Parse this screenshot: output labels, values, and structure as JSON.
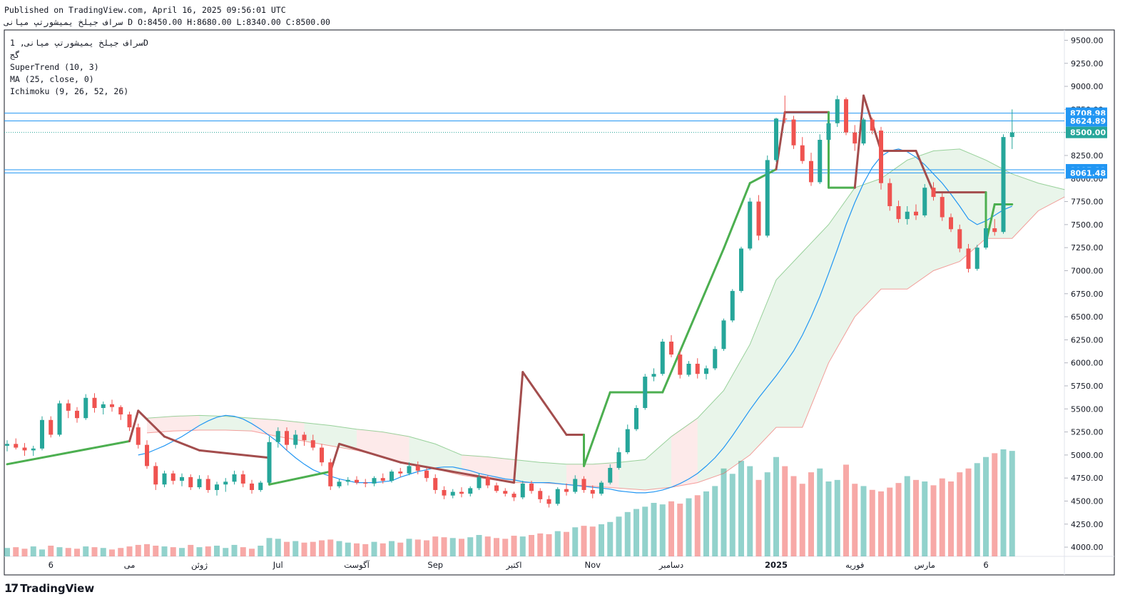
{
  "header": {
    "published": "Published on TradingView.com, April 16, 2025 09:56:01 UTC",
    "symbol_line": "سراف جیلخ یمیشورتپ میانی D O:8450.00 H:8680.00 L:8340.00 C:8500.00"
  },
  "legend": {
    "symbol": "سراف جیلخ یمیشورتپ میانی, 1D",
    "exchange": "گج",
    "supertrend": "SuperTrend (10, 3)",
    "ma": "MA (25, close, 0)",
    "ichimoku": "Ichimoku (9, 26, 52, 26)"
  },
  "brand": {
    "logo": "17",
    "name": "TradingView"
  },
  "colors": {
    "up": "#26a69a",
    "down": "#ef5350",
    "supertrend_up": "#4caf50",
    "supertrend_down": "#a34d4d",
    "ma": "#2196f3",
    "cloud_bull": "#4caf50",
    "cloud_bear": "#ef5350",
    "hline": "#2196f3",
    "last_price": "#26a69a"
  },
  "chart_data": {
    "type": "candlestick",
    "timeframe": "1D",
    "ylim": [
      3900,
      9550
    ],
    "yticks": [
      4000,
      4250,
      4500,
      4750,
      5000,
      5250,
      5500,
      5750,
      6000,
      6250,
      6500,
      6750,
      7000,
      7250,
      7500,
      7750,
      8000,
      8250,
      8500,
      8750,
      9000,
      9250,
      9500
    ],
    "x_ticks": [
      {
        "label": "6",
        "bold": false,
        "i": 5
      },
      {
        "label": "می",
        "bold": false,
        "i": 14
      },
      {
        "label": "ژوئن",
        "bold": false,
        "i": 22
      },
      {
        "label": "Jul",
        "bold": false,
        "i": 31
      },
      {
        "label": "آگوست",
        "bold": false,
        "i": 40
      },
      {
        "label": "Sep",
        "bold": false,
        "i": 49
      },
      {
        "label": "اکتبر",
        "bold": false,
        "i": 58
      },
      {
        "label": "Nov",
        "bold": false,
        "i": 67
      },
      {
        "label": "دسامبر",
        "bold": false,
        "i": 76
      },
      {
        "label": "2025",
        "bold": true,
        "i": 88
      },
      {
        "label": "فوریه",
        "bold": false,
        "i": 97
      },
      {
        "label": "مارس",
        "bold": false,
        "i": 105
      },
      {
        "label": "6",
        "bold": false,
        "i": 112
      }
    ],
    "price_labels": [
      {
        "value": 8708.98,
        "label": "8708.98",
        "kind": "hline"
      },
      {
        "value": 8624.89,
        "label": "8624.89",
        "kind": "hline"
      },
      {
        "value": 8500.0,
        "label": "8500.00",
        "kind": "last"
      },
      {
        "value": 8095.12,
        "label": "8095.12",
        "kind": "hline"
      },
      {
        "value": 8061.48,
        "label": "8061.48",
        "kind": "hline"
      }
    ],
    "candles_ohlc": [
      [
        5100,
        5160,
        5040,
        5120
      ],
      [
        5120,
        5180,
        5060,
        5080
      ],
      [
        5080,
        5130,
        4990,
        5050
      ],
      [
        5050,
        5100,
        4990,
        5070
      ],
      [
        5070,
        5420,
        5050,
        5380
      ],
      [
        5380,
        5420,
        5190,
        5220
      ],
      [
        5220,
        5590,
        5200,
        5560
      ],
      [
        5560,
        5600,
        5400,
        5480
      ],
      [
        5480,
        5520,
        5350,
        5400
      ],
      [
        5400,
        5660,
        5380,
        5620
      ],
      [
        5620,
        5670,
        5460,
        5510
      ],
      [
        5510,
        5580,
        5440,
        5550
      ],
      [
        5550,
        5600,
        5470,
        5520
      ],
      [
        5520,
        5540,
        5380,
        5440
      ],
      [
        5440,
        5470,
        5260,
        5300
      ],
      [
        5300,
        5340,
        5070,
        5110
      ],
      [
        5110,
        5160,
        4850,
        4880
      ],
      [
        4880,
        4920,
        4620,
        4680
      ],
      [
        4680,
        4830,
        4650,
        4800
      ],
      [
        4800,
        4830,
        4680,
        4720
      ],
      [
        4720,
        4800,
        4660,
        4760
      ],
      [
        4760,
        4790,
        4620,
        4650
      ],
      [
        4650,
        4780,
        4630,
        4740
      ],
      [
        4740,
        4780,
        4590,
        4620
      ],
      [
        4620,
        4710,
        4560,
        4680
      ],
      [
        4680,
        4750,
        4600,
        4710
      ],
      [
        4710,
        4830,
        4680,
        4790
      ],
      [
        4790,
        4830,
        4650,
        4690
      ],
      [
        4690,
        4730,
        4580,
        4620
      ],
      [
        4620,
        4720,
        4600,
        4700
      ],
      [
        4700,
        5200,
        4680,
        5140
      ],
      [
        5140,
        5300,
        5080,
        5260
      ],
      [
        5260,
        5300,
        5050,
        5110
      ],
      [
        5110,
        5270,
        5070,
        5220
      ],
      [
        5220,
        5250,
        5100,
        5160
      ],
      [
        5160,
        5220,
        5050,
        5080
      ],
      [
        5080,
        5120,
        4880,
        4920
      ],
      [
        4920,
        4960,
        4620,
        4660
      ],
      [
        4660,
        4740,
        4640,
        4710
      ],
      [
        4710,
        4760,
        4670,
        4730
      ],
      [
        4730,
        4770,
        4680,
        4700
      ],
      [
        4700,
        4740,
        4650,
        4690
      ],
      [
        4690,
        4770,
        4660,
        4750
      ],
      [
        4750,
        4800,
        4690,
        4720
      ],
      [
        4720,
        4840,
        4700,
        4820
      ],
      [
        4820,
        4860,
        4760,
        4800
      ],
      [
        4800,
        4920,
        4780,
        4880
      ],
      [
        4880,
        4930,
        4790,
        4830
      ],
      [
        4830,
        4860,
        4710,
        4750
      ],
      [
        4750,
        4790,
        4580,
        4620
      ],
      [
        4620,
        4660,
        4520,
        4560
      ],
      [
        4560,
        4630,
        4530,
        4600
      ],
      [
        4600,
        4650,
        4540,
        4580
      ],
      [
        4580,
        4660,
        4550,
        4640
      ],
      [
        4640,
        4800,
        4620,
        4760
      ],
      [
        4760,
        4780,
        4640,
        4670
      ],
      [
        4670,
        4700,
        4590,
        4610
      ],
      [
        4610,
        4640,
        4550,
        4580
      ],
      [
        4580,
        4600,
        4500,
        4540
      ],
      [
        4540,
        4720,
        4520,
        4690
      ],
      [
        4690,
        4720,
        4580,
        4610
      ],
      [
        4610,
        4640,
        4480,
        4520
      ],
      [
        4520,
        4560,
        4430,
        4470
      ],
      [
        4470,
        4650,
        4450,
        4630
      ],
      [
        4630,
        4690,
        4560,
        4600
      ],
      [
        4600,
        4780,
        4580,
        4740
      ],
      [
        4740,
        4770,
        4590,
        4620
      ],
      [
        4620,
        4670,
        4530,
        4580
      ],
      [
        4580,
        4720,
        4560,
        4700
      ],
      [
        4700,
        4900,
        4680,
        4860
      ],
      [
        4860,
        5080,
        4840,
        5030
      ],
      [
        5030,
        5330,
        5010,
        5280
      ],
      [
        5280,
        5540,
        5260,
        5510
      ],
      [
        5510,
        5880,
        5490,
        5850
      ],
      [
        5850,
        5940,
        5800,
        5880
      ],
      [
        5880,
        6260,
        5860,
        6230
      ],
      [
        6230,
        6300,
        6060,
        6090
      ],
      [
        6090,
        6140,
        5830,
        5870
      ],
      [
        5870,
        6020,
        5850,
        5990
      ],
      [
        5990,
        6050,
        5830,
        5880
      ],
      [
        5880,
        5970,
        5820,
        5940
      ],
      [
        5940,
        6180,
        5920,
        6150
      ],
      [
        6150,
        6480,
        6130,
        6460
      ],
      [
        6460,
        6800,
        6440,
        6780
      ],
      [
        6780,
        7260,
        6760,
        7240
      ],
      [
        7240,
        7790,
        7220,
        7750
      ],
      [
        7750,
        7820,
        7330,
        7380
      ],
      [
        7380,
        8250,
        7360,
        8200
      ],
      [
        8200,
        8660,
        8180,
        8650
      ],
      [
        8650,
        8900,
        8600,
        8640
      ],
      [
        8640,
        8680,
        8320,
        8360
      ],
      [
        8360,
        8450,
        8160,
        8190
      ],
      [
        8190,
        8280,
        7920,
        7960
      ],
      [
        7960,
        8480,
        7940,
        8420
      ],
      [
        8420,
        8640,
        8380,
        8600
      ],
      [
        8600,
        8900,
        8560,
        8860
      ],
      [
        8860,
        8880,
        8470,
        8500
      ],
      [
        8500,
        8580,
        8300,
        8380
      ],
      [
        8380,
        8660,
        8360,
        8640
      ],
      [
        8640,
        8660,
        8480,
        8520
      ],
      [
        8520,
        8560,
        7880,
        7950
      ],
      [
        7950,
        8000,
        7650,
        7700
      ],
      [
        7700,
        7760,
        7520,
        7560
      ],
      [
        7560,
        7700,
        7500,
        7640
      ],
      [
        7640,
        7720,
        7550,
        7600
      ],
      [
        7600,
        7940,
        7580,
        7900
      ],
      [
        7900,
        7960,
        7760,
        7800
      ],
      [
        7800,
        7840,
        7540,
        7580
      ],
      [
        7580,
        7620,
        7420,
        7450
      ],
      [
        7450,
        7500,
        7200,
        7240
      ],
      [
        7240,
        7290,
        6980,
        7020
      ],
      [
        7020,
        7280,
        7000,
        7250
      ],
      [
        7250,
        7480,
        7230,
        7460
      ],
      [
        7460,
        7560,
        7380,
        7420
      ],
      [
        7420,
        8480,
        7400,
        8450
      ],
      [
        8450,
        8750,
        8320,
        8500
      ]
    ],
    "volume": [
      110,
      120,
      100,
      130,
      90,
      140,
      120,
      110,
      100,
      130,
      120,
      110,
      90,
      110,
      130,
      150,
      160,
      140,
      130,
      120,
      110,
      150,
      120,
      130,
      140,
      110,
      150,
      120,
      100,
      140,
      240,
      230,
      190,
      200,
      180,
      190,
      210,
      220,
      200,
      180,
      170,
      160,
      190,
      170,
      200,
      180,
      230,
      220,
      210,
      260,
      250,
      240,
      230,
      250,
      280,
      260,
      240,
      230,
      270,
      260,
      280,
      300,
      290,
      330,
      320,
      380,
      400,
      390,
      420,
      450,
      520,
      580,
      620,
      650,
      700,
      680,
      720,
      690,
      760,
      800,
      850,
      920,
      1150,
      1080,
      1250,
      1180,
      1000,
      1100,
      1300,
      1180,
      1050,
      950,
      1100,
      1150,
      980,
      1000,
      1200,
      950,
      920,
      870,
      850,
      900,
      960,
      1050,
      1000,
      980,
      930,
      1020,
      980,
      1100,
      1150,
      1220,
      1300,
      1350,
      1400,
      1380
    ],
    "supertrend": [
      {
        "i": 0,
        "v": 4900,
        "trend": "up"
      },
      {
        "i": 14,
        "v": 5150,
        "trend": "up"
      },
      {
        "i": 15,
        "v": 5480,
        "trend": "down"
      },
      {
        "i": 18,
        "v": 5200,
        "trend": "down"
      },
      {
        "i": 22,
        "v": 5050,
        "trend": "down"
      },
      {
        "i": 30,
        "v": 4970,
        "trend": "down"
      },
      {
        "i": 30,
        "v": 4680,
        "trend": "up"
      },
      {
        "i": 37,
        "v": 4820,
        "trend": "up"
      },
      {
        "i": 38,
        "v": 5120,
        "trend": "down"
      },
      {
        "i": 45,
        "v": 4920,
        "trend": "down"
      },
      {
        "i": 58,
        "v": 4700,
        "trend": "down"
      },
      {
        "i": 59,
        "v": 5900,
        "trend": "down"
      },
      {
        "i": 64,
        "v": 5220,
        "trend": "down"
      },
      {
        "i": 66,
        "v": 5220,
        "trend": "down"
      },
      {
        "i": 66,
        "v": 4880,
        "trend": "up"
      },
      {
        "i": 69,
        "v": 5680,
        "trend": "up"
      },
      {
        "i": 75,
        "v": 5680,
        "trend": "up"
      },
      {
        "i": 82,
        "v": 7240,
        "trend": "up"
      },
      {
        "i": 85,
        "v": 7950,
        "trend": "up"
      },
      {
        "i": 88,
        "v": 8100,
        "trend": "up"
      },
      {
        "i": 89,
        "v": 8720,
        "trend": "down"
      },
      {
        "i": 94,
        "v": 8720,
        "trend": "down"
      },
      {
        "i": 94,
        "v": 7900,
        "trend": "up"
      },
      {
        "i": 97,
        "v": 7900,
        "trend": "up"
      },
      {
        "i": 98,
        "v": 8900,
        "trend": "down"
      },
      {
        "i": 100,
        "v": 8300,
        "trend": "down"
      },
      {
        "i": 104,
        "v": 8300,
        "trend": "down"
      },
      {
        "i": 106,
        "v": 7850,
        "trend": "down"
      },
      {
        "i": 112,
        "v": 7850,
        "trend": "down"
      },
      {
        "i": 112,
        "v": 7300,
        "trend": "up"
      },
      {
        "i": 113,
        "v": 7720,
        "trend": "up"
      },
      {
        "i": 115,
        "v": 7720,
        "trend": "up"
      }
    ],
    "ma25": [
      5000,
      5020,
      5060,
      5100,
      5150,
      5200,
      5260,
      5320,
      5370,
      5410,
      5430,
      5420,
      5390,
      5340,
      5280,
      5210,
      5140,
      5050,
      4970,
      4900,
      4840,
      4800,
      4770,
      4740,
      4720,
      4700,
      4700,
      4700,
      4710,
      4720,
      4760,
      4790,
      4820,
      4840,
      4860,
      4870,
      4870,
      4850,
      4830,
      4800,
      4780,
      4760,
      4740,
      4730,
      4710,
      4700,
      4700,
      4700,
      4690,
      4680,
      4670,
      4660,
      4650,
      4640,
      4630,
      4610,
      4600,
      4590,
      4590,
      4600,
      4620,
      4650,
      4690,
      4740,
      4800,
      4880,
      4970,
      5080,
      5210,
      5350,
      5490,
      5620,
      5740,
      5860,
      5990,
      6130,
      6300,
      6500,
      6720,
      6970,
      7230,
      7500,
      7740,
      7950,
      8120,
      8240,
      8300,
      8320,
      8290,
      8230,
      8150,
      8050,
      7950,
      7830,
      7700,
      7560,
      7500,
      7540,
      7600,
      7660,
      7700
    ],
    "ma25_start": 15,
    "cloud_upper": [
      5400,
      5420,
      5430,
      5420,
      5400,
      5380,
      5350,
      5320,
      5280,
      5250,
      5200,
      5120,
      5000,
      4980,
      4950,
      4920,
      4900,
      4900,
      4920,
      4950,
      5200,
      5400,
      5700,
      6200,
      6900,
      7200,
      7500,
      7900,
      8000,
      8200,
      8300,
      8320,
      8200,
      8050,
      7950,
      7880
    ],
    "cloud_lower": [
      5240,
      5260,
      5270,
      5270,
      5260,
      5200,
      5150,
      5100,
      5050,
      4980,
      4900,
      4850,
      4780,
      4740,
      4700,
      4700,
      4680,
      4660,
      4640,
      4620,
      4650,
      4700,
      4800,
      5000,
      5300,
      5300,
      6000,
      6500,
      6800,
      6800,
      7000,
      7100,
      7350,
      7350,
      7650,
      7800
    ],
    "cloud_start": 16,
    "cloud_step": 3
  }
}
